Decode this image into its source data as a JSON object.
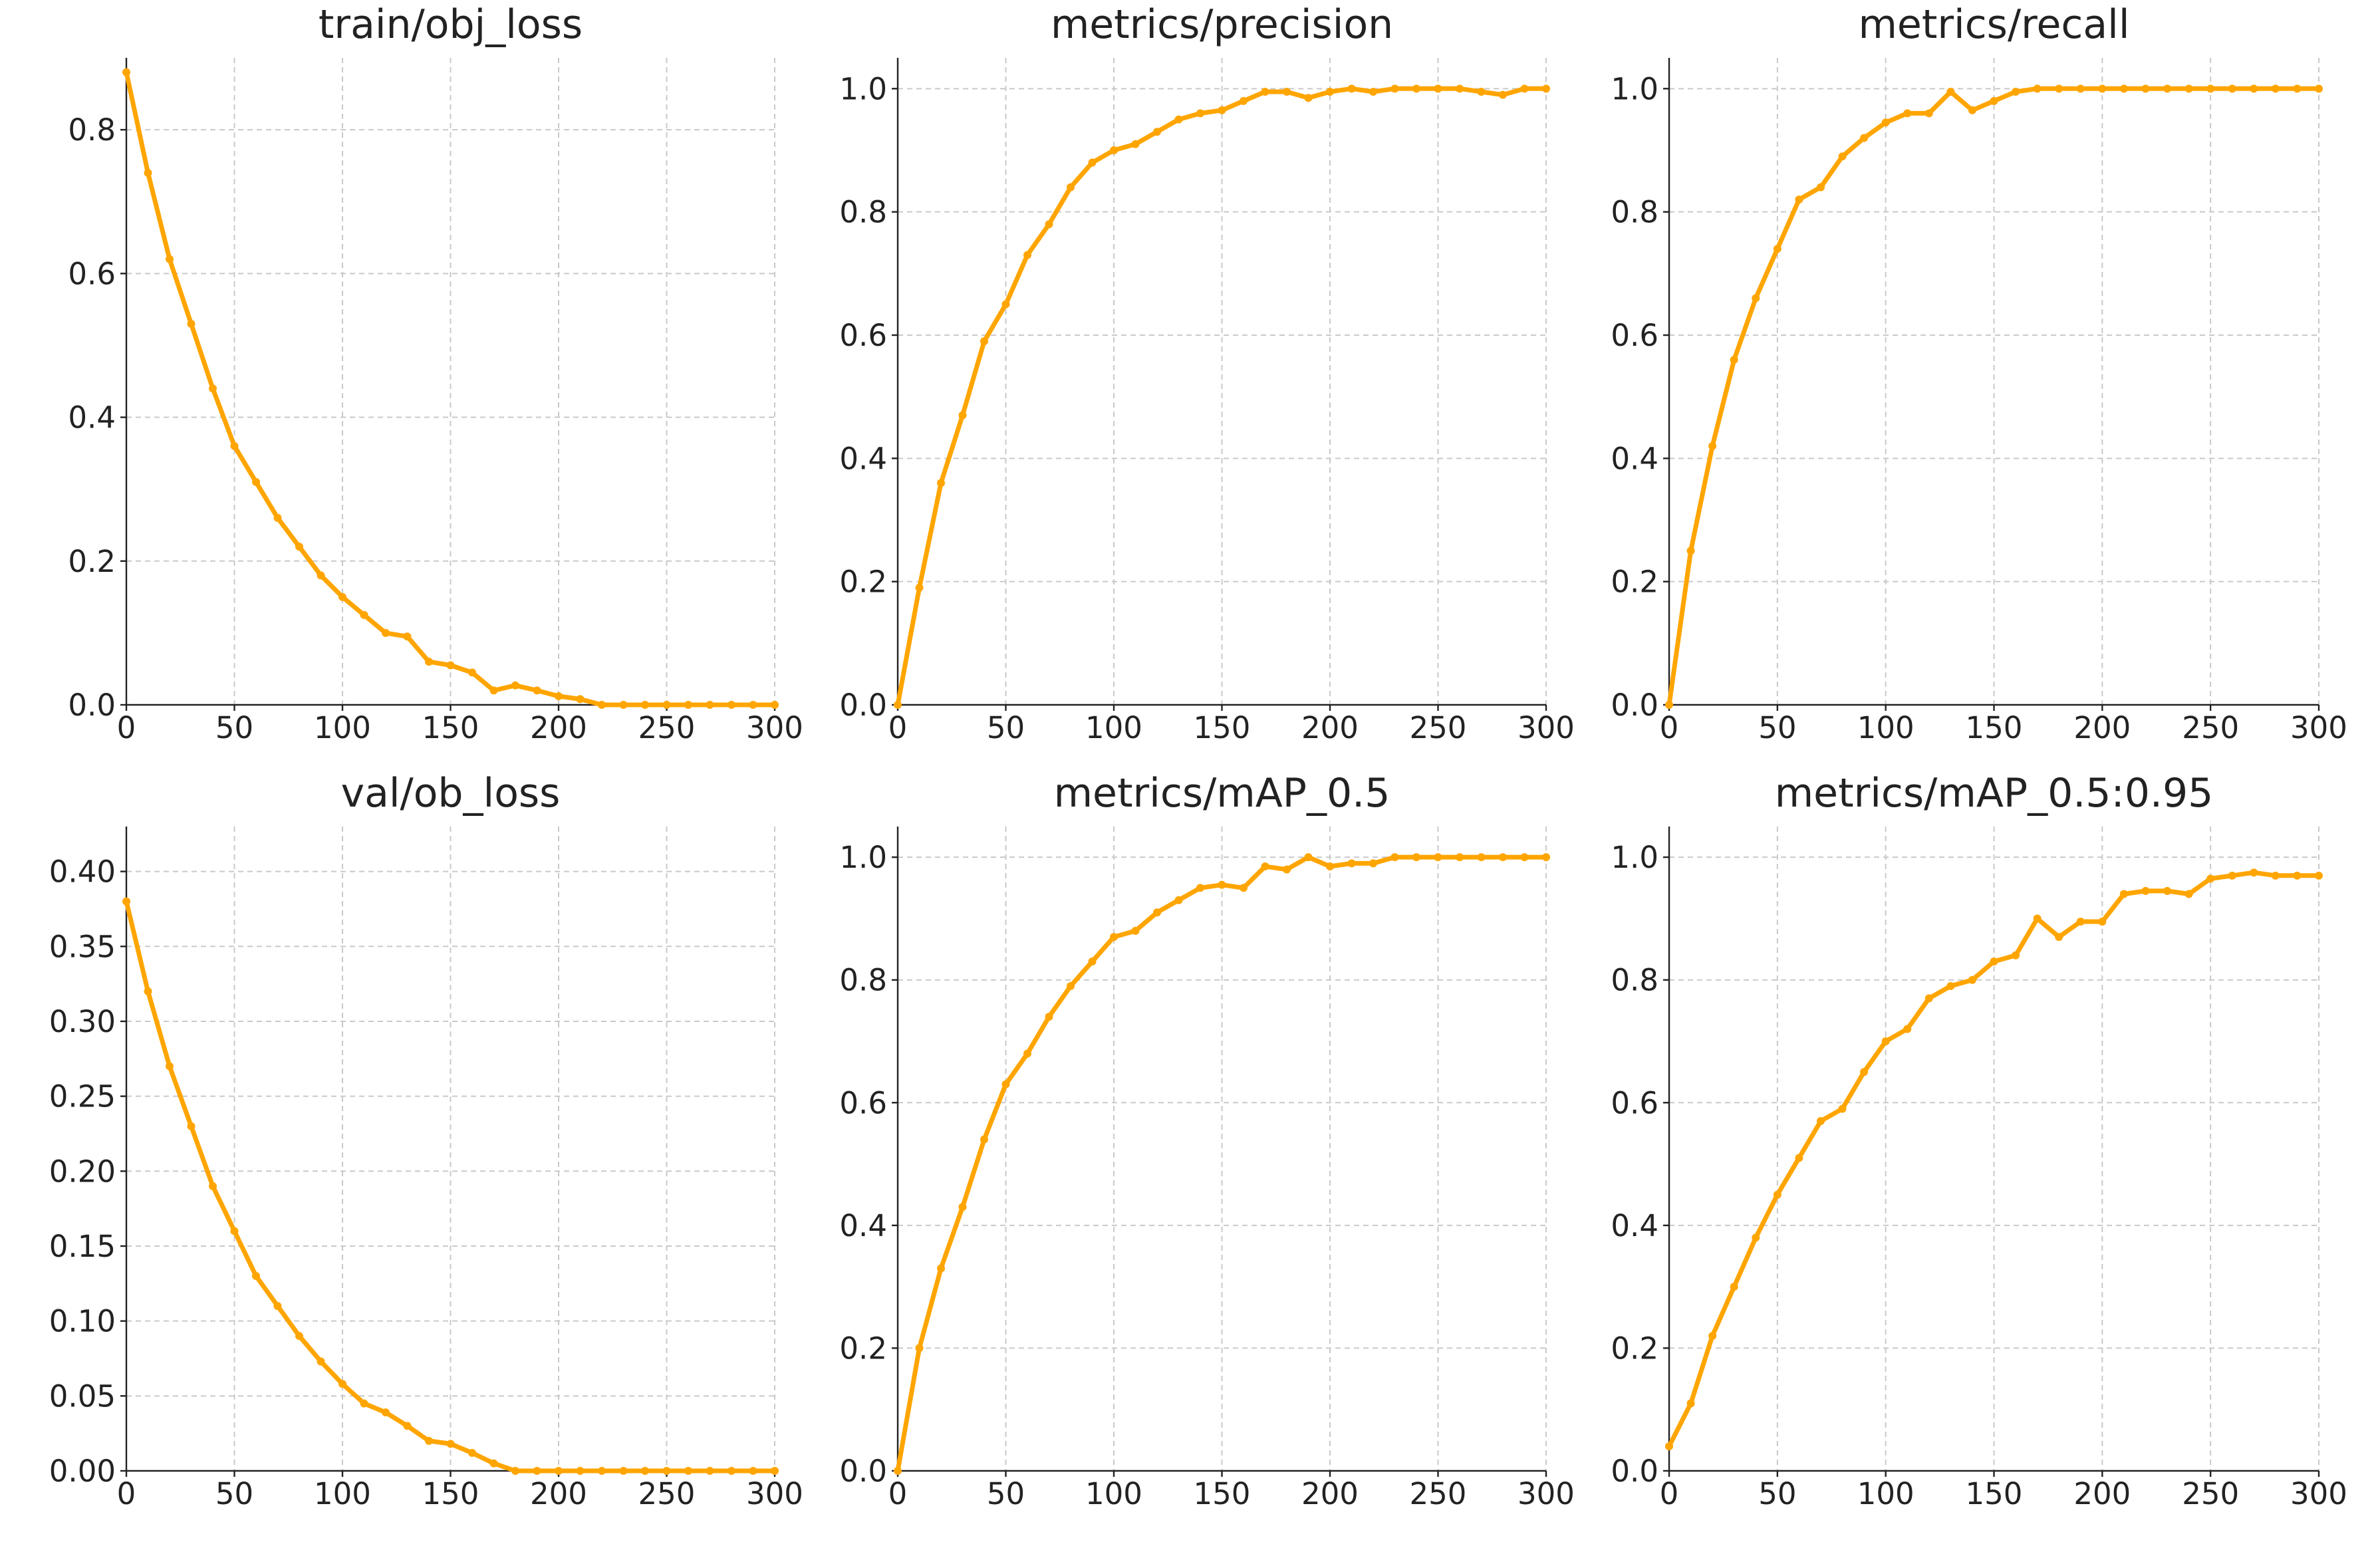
{
  "figure": {
    "line_color": "#FFA500",
    "grid": true,
    "background": "#ffffff"
  },
  "chart_data": [
    {
      "type": "line",
      "title": "train/obj_loss",
      "xlabel": "",
      "ylabel": "",
      "xlim": [
        0,
        300
      ],
      "ylim": [
        0,
        0.9
      ],
      "xticks": [
        0,
        50,
        100,
        150,
        200,
        250,
        300
      ],
      "yticks": [
        0.0,
        0.2,
        0.4,
        0.6,
        0.8
      ],
      "ytick_labels": [
        "0.0",
        "0.2",
        "0.4",
        "0.6",
        "0.8"
      ],
      "x": [
        0,
        10,
        20,
        30,
        40,
        50,
        60,
        70,
        80,
        90,
        100,
        110,
        120,
        130,
        140,
        150,
        160,
        170,
        180,
        190,
        200,
        210,
        220,
        230,
        240,
        250,
        260,
        270,
        280,
        290,
        300
      ],
      "series": [
        {
          "values": [
            0.88,
            0.74,
            0.62,
            0.53,
            0.44,
            0.36,
            0.31,
            0.26,
            0.22,
            0.18,
            0.15,
            0.125,
            0.1,
            0.095,
            0.06,
            0.055,
            0.045,
            0.02,
            0.027,
            0.02,
            0.012,
            0.008,
            0.0,
            0.0,
            0.0,
            0.0,
            0.0,
            0.0,
            0.0,
            0.0,
            0.0
          ]
        }
      ]
    },
    {
      "type": "line",
      "title": "metrics/precision",
      "xlabel": "",
      "ylabel": "",
      "xlim": [
        0,
        300
      ],
      "ylim": [
        0,
        1.05
      ],
      "xticks": [
        0,
        50,
        100,
        150,
        200,
        250,
        300
      ],
      "yticks": [
        0.0,
        0.2,
        0.4,
        0.6,
        0.8,
        1.0
      ],
      "ytick_labels": [
        "0.0",
        "0.2",
        "0.4",
        "0.6",
        "0.8",
        "1.0"
      ],
      "x": [
        0,
        10,
        20,
        30,
        40,
        50,
        60,
        70,
        80,
        90,
        100,
        110,
        120,
        130,
        140,
        150,
        160,
        170,
        180,
        190,
        200,
        210,
        220,
        230,
        240,
        250,
        260,
        270,
        280,
        290,
        300
      ],
      "series": [
        {
          "values": [
            0.0,
            0.19,
            0.36,
            0.47,
            0.59,
            0.65,
            0.73,
            0.78,
            0.84,
            0.88,
            0.9,
            0.91,
            0.93,
            0.95,
            0.96,
            0.965,
            0.98,
            0.995,
            0.995,
            0.985,
            0.995,
            1.0,
            0.995,
            1.0,
            1.0,
            1.0,
            1.0,
            0.995,
            0.99,
            1.0,
            1.0
          ]
        }
      ]
    },
    {
      "type": "line",
      "title": "metrics/recall",
      "xlabel": "",
      "ylabel": "",
      "xlim": [
        0,
        300
      ],
      "ylim": [
        0,
        1.05
      ],
      "xticks": [
        0,
        50,
        100,
        150,
        200,
        250,
        300
      ],
      "yticks": [
        0.0,
        0.2,
        0.4,
        0.6,
        0.8,
        1.0
      ],
      "ytick_labels": [
        "0.0",
        "0.2",
        "0.4",
        "0.6",
        "0.8",
        "1.0"
      ],
      "x": [
        0,
        10,
        20,
        30,
        40,
        50,
        60,
        70,
        80,
        90,
        100,
        110,
        120,
        130,
        140,
        150,
        160,
        170,
        180,
        190,
        200,
        210,
        220,
        230,
        240,
        250,
        260,
        270,
        280,
        290,
        300
      ],
      "series": [
        {
          "values": [
            0.0,
            0.25,
            0.42,
            0.56,
            0.66,
            0.74,
            0.82,
            0.84,
            0.89,
            0.92,
            0.945,
            0.96,
            0.96,
            0.995,
            0.965,
            0.98,
            0.995,
            1.0,
            1.0,
            1.0,
            1.0,
            1.0,
            1.0,
            1.0,
            1.0,
            1.0,
            1.0,
            1.0,
            1.0,
            1.0,
            1.0
          ]
        }
      ]
    },
    {
      "type": "line",
      "title": "val/ob_loss",
      "xlabel": "",
      "ylabel": "",
      "xlim": [
        0,
        300
      ],
      "ylim": [
        0,
        0.43
      ],
      "xticks": [
        0,
        50,
        100,
        150,
        200,
        250,
        300
      ],
      "yticks": [
        0.0,
        0.05,
        0.1,
        0.15,
        0.2,
        0.25,
        0.3,
        0.35,
        0.4
      ],
      "ytick_labels": [
        "0.00",
        "0.05",
        "0.10",
        "0.15",
        "0.20",
        "0.25",
        "0.30",
        "0.35",
        "0.40"
      ],
      "x": [
        0,
        10,
        20,
        30,
        40,
        50,
        60,
        70,
        80,
        90,
        100,
        110,
        120,
        130,
        140,
        150,
        160,
        170,
        180,
        190,
        200,
        210,
        220,
        230,
        240,
        250,
        260,
        270,
        280,
        290,
        300
      ],
      "series": [
        {
          "values": [
            0.38,
            0.32,
            0.27,
            0.23,
            0.19,
            0.16,
            0.13,
            0.11,
            0.09,
            0.073,
            0.058,
            0.045,
            0.039,
            0.03,
            0.02,
            0.018,
            0.012,
            0.005,
            0.0,
            0.0,
            0.0,
            0.0,
            0.0,
            0.0,
            0.0,
            0.0,
            0.0,
            0.0,
            0.0,
            0.0,
            0.0
          ]
        }
      ]
    },
    {
      "type": "line",
      "title": "metrics/mAP_0.5",
      "xlabel": "",
      "ylabel": "",
      "xlim": [
        0,
        300
      ],
      "ylim": [
        0,
        1.05
      ],
      "xticks": [
        0,
        50,
        100,
        150,
        200,
        250,
        300
      ],
      "yticks": [
        0.0,
        0.2,
        0.4,
        0.6,
        0.8,
        1.0
      ],
      "ytick_labels": [
        "0.0",
        "0.2",
        "0.4",
        "0.6",
        "0.8",
        "1.0"
      ],
      "x": [
        0,
        10,
        20,
        30,
        40,
        50,
        60,
        70,
        80,
        90,
        100,
        110,
        120,
        130,
        140,
        150,
        160,
        170,
        180,
        190,
        200,
        210,
        220,
        230,
        240,
        250,
        260,
        270,
        280,
        290,
        300
      ],
      "series": [
        {
          "values": [
            0.0,
            0.2,
            0.33,
            0.43,
            0.54,
            0.63,
            0.68,
            0.74,
            0.79,
            0.83,
            0.87,
            0.88,
            0.91,
            0.93,
            0.95,
            0.955,
            0.95,
            0.985,
            0.98,
            1.0,
            0.985,
            0.99,
            0.99,
            1.0,
            1.0,
            1.0,
            1.0,
            1.0,
            1.0,
            1.0,
            1.0
          ]
        }
      ]
    },
    {
      "type": "line",
      "title": "metrics/mAP_0.5:0.95",
      "xlabel": "",
      "ylabel": "",
      "xlim": [
        0,
        300
      ],
      "ylim": [
        0,
        1.05
      ],
      "xticks": [
        0,
        50,
        100,
        150,
        200,
        250,
        300
      ],
      "yticks": [
        0.0,
        0.2,
        0.4,
        0.6,
        0.8,
        1.0
      ],
      "ytick_labels": [
        "0.0",
        "0.2",
        "0.4",
        "0.6",
        "0.8",
        "1.0"
      ],
      "x": [
        0,
        10,
        20,
        30,
        40,
        50,
        60,
        70,
        80,
        90,
        100,
        110,
        120,
        130,
        140,
        150,
        160,
        170,
        180,
        190,
        200,
        210,
        220,
        230,
        240,
        250,
        260,
        270,
        280,
        290,
        300
      ],
      "series": [
        {
          "values": [
            0.04,
            0.11,
            0.22,
            0.3,
            0.38,
            0.45,
            0.51,
            0.57,
            0.59,
            0.65,
            0.7,
            0.72,
            0.77,
            0.79,
            0.8,
            0.83,
            0.84,
            0.9,
            0.87,
            0.895,
            0.895,
            0.94,
            0.945,
            0.945,
            0.94,
            0.965,
            0.97,
            0.975,
            0.97,
            0.97,
            0.97
          ]
        }
      ]
    }
  ]
}
